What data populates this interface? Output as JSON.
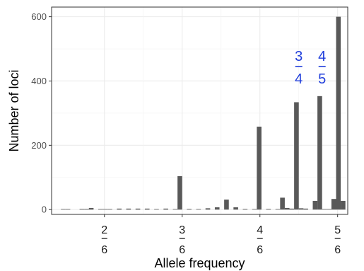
{
  "chart_data": {
    "type": "bar",
    "xlabel": "Allele frequency",
    "ylabel": "Number of loci",
    "xlim": [
      0.22,
      0.855
    ],
    "ylim": [
      -15,
      630
    ],
    "grid": true,
    "legend": "none",
    "y_ticks": [
      0,
      200,
      400,
      600
    ],
    "x_ticks": [
      {
        "value": 0.3333,
        "numerator": "2",
        "denominator": "6"
      },
      {
        "value": 0.5,
        "numerator": "3",
        "denominator": "6"
      },
      {
        "value": 0.6667,
        "numerator": "4",
        "denominator": "6"
      },
      {
        "value": 0.8333,
        "numerator": "5",
        "denominator": "6"
      }
    ],
    "bin_width": 0.01,
    "bar_color": "#595959",
    "bars": [
      {
        "x": 0.245,
        "y": 1
      },
      {
        "x": 0.255,
        "y": 1
      },
      {
        "x": 0.285,
        "y": 2
      },
      {
        "x": 0.295,
        "y": 2
      },
      {
        "x": 0.305,
        "y": 5
      },
      {
        "x": 0.325,
        "y": 1
      },
      {
        "x": 0.335,
        "y": 1
      },
      {
        "x": 0.345,
        "y": 1
      },
      {
        "x": 0.365,
        "y": 3
      },
      {
        "x": 0.385,
        "y": 3
      },
      {
        "x": 0.405,
        "y": 3
      },
      {
        "x": 0.425,
        "y": 3
      },
      {
        "x": 0.445,
        "y": 1
      },
      {
        "x": 0.465,
        "y": 3
      },
      {
        "x": 0.485,
        "y": 1
      },
      {
        "x": 0.495,
        "y": 104
      },
      {
        "x": 0.515,
        "y": 2
      },
      {
        "x": 0.535,
        "y": 1
      },
      {
        "x": 0.555,
        "y": 4
      },
      {
        "x": 0.575,
        "y": 7
      },
      {
        "x": 0.595,
        "y": 31
      },
      {
        "x": 0.615,
        "y": 7
      },
      {
        "x": 0.635,
        "y": 2
      },
      {
        "x": 0.655,
        "y": 1
      },
      {
        "x": 0.665,
        "y": 258
      },
      {
        "x": 0.685,
        "y": 2
      },
      {
        "x": 0.705,
        "y": 1
      },
      {
        "x": 0.715,
        "y": 37
      },
      {
        "x": 0.725,
        "y": 5
      },
      {
        "x": 0.735,
        "y": 3
      },
      {
        "x": 0.745,
        "y": 334
      },
      {
        "x": 0.755,
        "y": 4
      },
      {
        "x": 0.765,
        "y": 3
      },
      {
        "x": 0.785,
        "y": 27
      },
      {
        "x": 0.795,
        "y": 353
      },
      {
        "x": 0.805,
        "y": 1
      },
      {
        "x": 0.815,
        "y": 1
      },
      {
        "x": 0.825,
        "y": 33
      },
      {
        "x": 0.835,
        "y": 600
      },
      {
        "x": 0.845,
        "y": 27
      }
    ],
    "annotations": [
      {
        "x": 0.75,
        "y": 445,
        "numerator": "3",
        "denominator": "4",
        "color": "#1f3ddb"
      },
      {
        "x": 0.8,
        "y": 445,
        "numerator": "4",
        "denominator": "5",
        "color": "#1f3ddb"
      }
    ]
  }
}
